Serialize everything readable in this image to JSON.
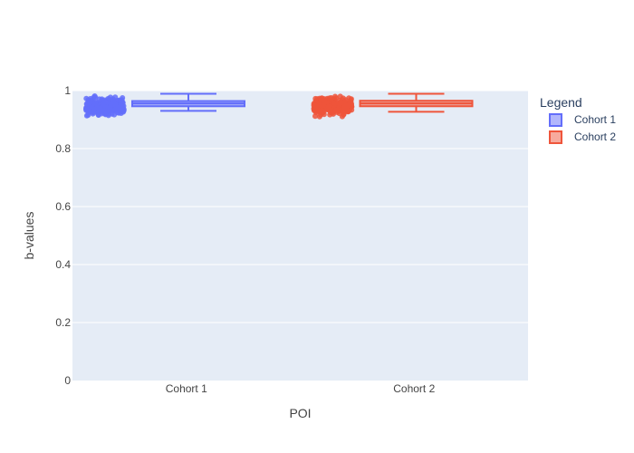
{
  "chart_data": {
    "type": "box",
    "xlabel": "POI",
    "ylabel": "b-values",
    "ylim": [
      0,
      1
    ],
    "yticks": [
      "0",
      "0.2",
      "0.4",
      "0.6",
      "0.8",
      "1"
    ],
    "categories": [
      "Cohort 1",
      "Cohort 2"
    ],
    "legend_title": "Legend",
    "legend_position": "right",
    "grid": true,
    "boxpoints": "all",
    "series": [
      {
        "name": "Cohort 1",
        "color": "#636efa",
        "min": 0.93,
        "q1": 0.946,
        "median": 0.956,
        "q3": 0.964,
        "max": 0.989,
        "points_min": 0.905,
        "points_max": 0.99
      },
      {
        "name": "Cohort 2",
        "color": "#ef553b",
        "min": 0.927,
        "q1": 0.946,
        "median": 0.956,
        "q3": 0.965,
        "max": 0.989,
        "points_min": 0.905,
        "points_max": 0.99
      }
    ]
  }
}
